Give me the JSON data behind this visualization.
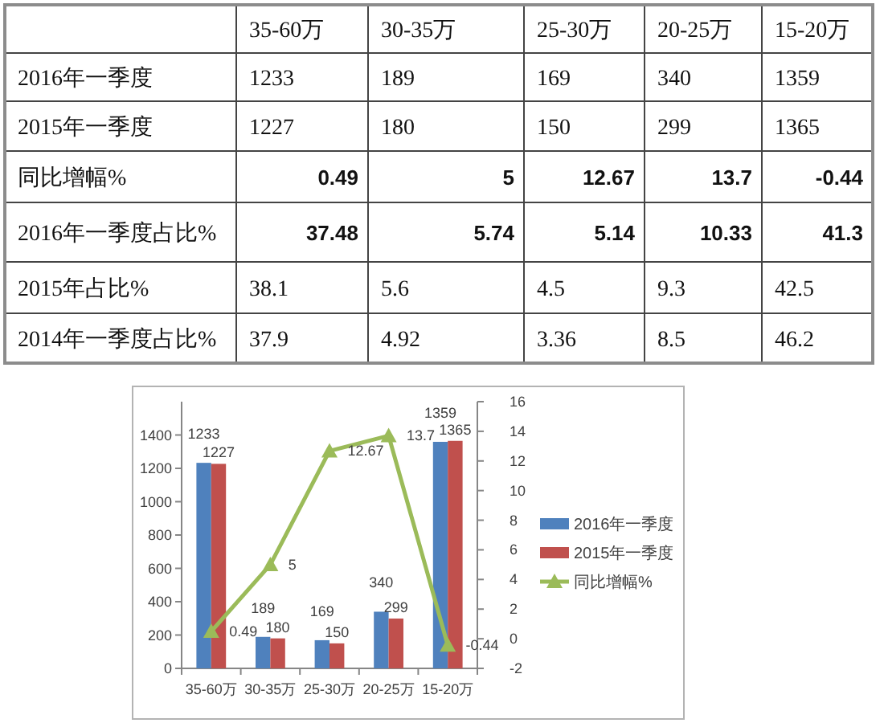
{
  "chart_data": [
    {
      "type": "other",
      "categories": [
        "35-60万",
        "30-35万",
        "25-30万",
        "20-25万",
        "15-20万"
      ],
      "series": [
        {
          "name": "2016年一季度",
          "values": [
            1233,
            189,
            169,
            340,
            1359
          ]
        },
        {
          "name": "2015年一季度",
          "values": [
            1227,
            180,
            150,
            299,
            1365
          ]
        },
        {
          "name": "同比增幅%",
          "values": [
            0.49,
            5,
            12.67,
            13.7,
            -0.44
          ]
        },
        {
          "name": "2016年一季度占比%",
          "values": [
            37.48,
            5.74,
            5.14,
            10.33,
            41.3
          ]
        },
        {
          "name": "2015年占比%",
          "values": [
            38.1,
            5.6,
            4.5,
            9.3,
            42.5
          ]
        },
        {
          "name": "2014年一季度占比%",
          "values": [
            37.9,
            4.92,
            3.36,
            8.5,
            46.2
          ]
        }
      ],
      "data_labels": true
    },
    {
      "type": "bar",
      "categories": [
        "35-60万",
        "30-35万",
        "25-30万",
        "20-25万",
        "15-20万"
      ],
      "series": [
        {
          "name": "2016年一季度",
          "color": "#4f81bd",
          "values": [
            1233,
            189,
            169,
            340,
            1359
          ]
        },
        {
          "name": "2015年一季度",
          "color": "#c0504d",
          "values": [
            1227,
            180,
            150,
            299,
            1365
          ]
        },
        {
          "name": "同比增幅%",
          "type": "line",
          "axis": "y2",
          "color": "#9bbb59",
          "values": [
            0.49,
            5,
            12.67,
            13.7,
            -0.44
          ]
        }
      ],
      "ylim": [
        0,
        1600
      ],
      "yticks": [
        0,
        200,
        400,
        600,
        800,
        1000,
        1200,
        1400
      ],
      "y2lim": [
        -2,
        16
      ],
      "y2ticks": [
        -2,
        0,
        2,
        4,
        6,
        8,
        10,
        12,
        14,
        16
      ],
      "marker": "triangle",
      "data_labels": true,
      "legend": "right"
    }
  ]
}
